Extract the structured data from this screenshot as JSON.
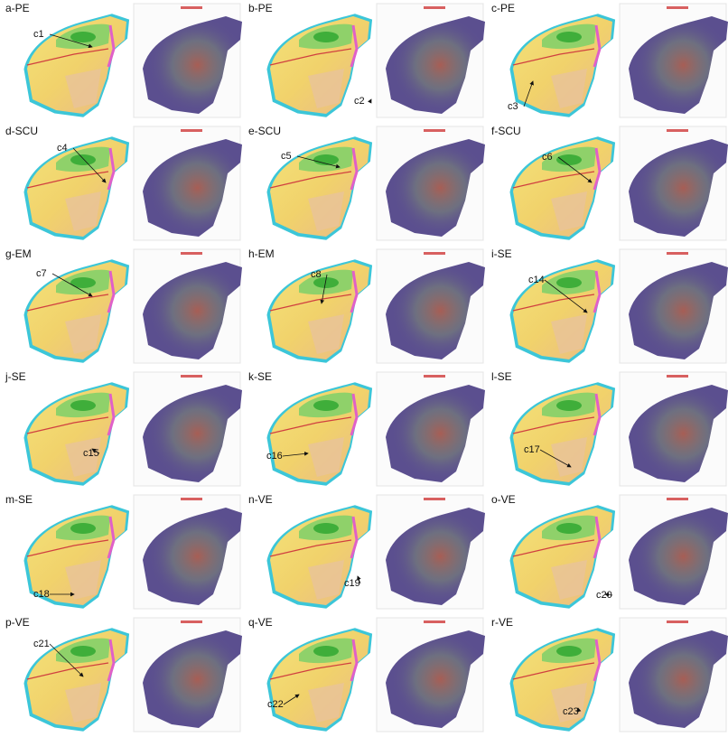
{
  "panels": [
    {
      "label": "a-PE",
      "callouts": [
        "c1"
      ]
    },
    {
      "label": "b-PE",
      "callouts": [
        "c2"
      ]
    },
    {
      "label": "c-PE",
      "callouts": [
        "c3"
      ]
    },
    {
      "label": "d-SCU",
      "callouts": [
        "c4"
      ]
    },
    {
      "label": "e-SCU",
      "callouts": [
        "c5"
      ]
    },
    {
      "label": "f-SCU",
      "callouts": [
        "c6"
      ]
    },
    {
      "label": "g-EM",
      "callouts": [
        "c7"
      ]
    },
    {
      "label": "h-EM",
      "callouts": [
        "c8"
      ]
    },
    {
      "label": "i-SE",
      "callouts": [
        "c14"
      ]
    },
    {
      "label": "j-SE",
      "callouts": [
        "c15"
      ]
    },
    {
      "label": "k-SE",
      "callouts": [
        "c16"
      ]
    },
    {
      "label": "l-SE",
      "callouts": [
        "c17"
      ]
    },
    {
      "label": "m-SE",
      "callouts": [
        "c18"
      ]
    },
    {
      "label": "n-VE",
      "callouts": [
        "c19"
      ]
    },
    {
      "label": "o-VE",
      "callouts": [
        "c20"
      ]
    },
    {
      "label": "p-VE",
      "callouts": [
        "c21"
      ]
    },
    {
      "label": "q-VE",
      "callouts": [
        "c22"
      ]
    },
    {
      "label": "r-VE",
      "callouts": [
        "c23"
      ]
    }
  ]
}
